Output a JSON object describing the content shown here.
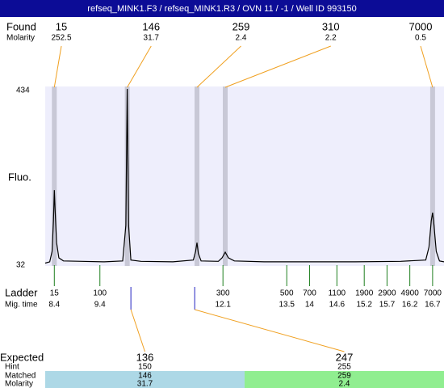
{
  "header": {
    "title": "refseq_MINK1.F3 / refseq_MINK1.R3 / OVN 11 / -1 / Well ID 993150"
  },
  "chart_data": {
    "type": "electropherogram",
    "y_label": "Fluo.",
    "ylim": [
      32,
      434
    ],
    "yticks": [
      32,
      434
    ],
    "xlim": [
      8.2,
      16.95
    ],
    "band_color": "#c8c8d6",
    "plot_color": "#eeeefc",
    "connector_color": "#f0a020",
    "ladder_color": "#208020",
    "expected_mark_color": "#2020c0",
    "found": {
      "label": "Found",
      "molarity_label": "Molarity",
      "sizes": [
        15,
        146,
        259,
        310,
        7000
      ],
      "molarity": [
        252.5,
        31.7,
        2.4,
        2.2,
        0.5
      ],
      "times": [
        8.4,
        10.0,
        11.53,
        12.15,
        16.7
      ]
    },
    "ladder": {
      "label": "Ladder",
      "time_label": "Mig. time",
      "sizes": [
        15,
        100,
        300,
        500,
        700,
        1100,
        1900,
        2900,
        4900,
        7000
      ],
      "times": [
        8.4,
        9.4,
        12.1,
        13.5,
        14,
        14.6,
        15.2,
        15.7,
        16.2,
        16.7
      ]
    },
    "expected": {
      "label": "Expected",
      "hint_label": "Hint",
      "matched_label": "Matched",
      "molarity_label": "Molarity",
      "sizes": [
        136,
        247
      ],
      "hint": [
        150,
        255
      ],
      "matched": [
        146,
        259
      ],
      "molarity": [
        31.7,
        2.4
      ],
      "times": [
        10.08,
        11.48
      ],
      "colors": [
        "#add8e6",
        "#90ee90"
      ]
    },
    "trace": {
      "color": "#000000",
      "x": [
        8.2,
        8.3,
        8.35,
        8.38,
        8.4,
        8.42,
        8.45,
        8.5,
        8.6,
        9.0,
        9.5,
        9.9,
        9.97,
        10.0,
        10.03,
        10.08,
        10.3,
        11.0,
        11.45,
        11.5,
        11.53,
        11.56,
        11.62,
        12.0,
        12.08,
        12.15,
        12.22,
        12.35,
        13.0,
        14.0,
        15.0,
        16.0,
        16.55,
        16.62,
        16.67,
        16.7,
        16.73,
        16.78,
        16.85,
        16.95
      ],
      "values": [
        33,
        36,
        60,
        130,
        201,
        150,
        80,
        45,
        38,
        37,
        36,
        38,
        120,
        434,
        120,
        40,
        37,
        36,
        40,
        60,
        80,
        55,
        38,
        37,
        45,
        58,
        45,
        38,
        36,
        36,
        36,
        37,
        40,
        70,
        130,
        149,
        120,
        60,
        38,
        36
      ]
    }
  }
}
